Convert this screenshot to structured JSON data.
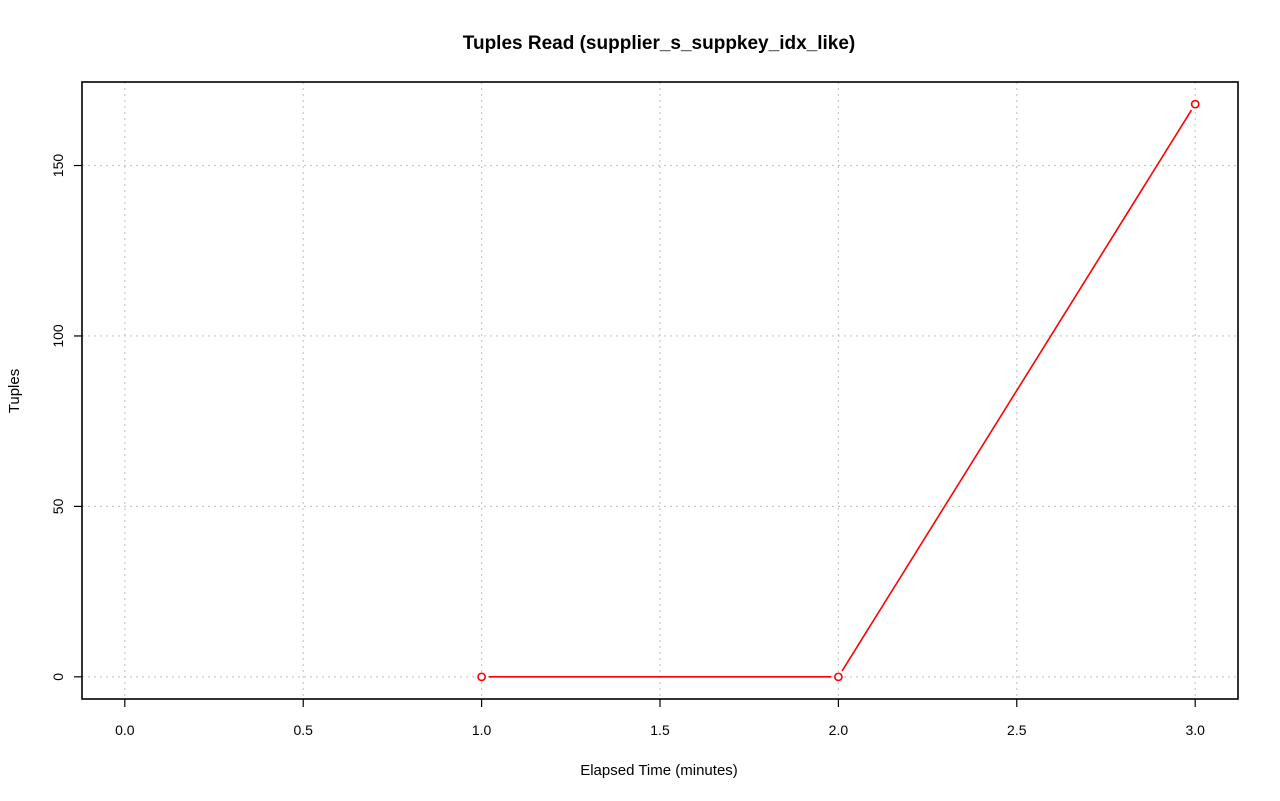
{
  "chart_data": {
    "type": "line",
    "title": "Tuples Read (supplier_s_suppkey_idx_like)",
    "xlabel": "Elapsed Time (minutes)",
    "ylabel": "Tuples",
    "xlim": [
      -0.12,
      3.12
    ],
    "ylim": [
      -6.5,
      174.5
    ],
    "xticks": [
      0.0,
      0.5,
      1.0,
      1.5,
      2.0,
      2.5,
      3.0
    ],
    "xtick_labels": [
      "0.0",
      "0.5",
      "1.0",
      "1.5",
      "2.0",
      "2.5",
      "3.0"
    ],
    "yticks": [
      0,
      50,
      100,
      150
    ],
    "ytick_labels": [
      "0",
      "50",
      "100",
      "150"
    ],
    "grid": true,
    "series": [
      {
        "color": "#ff0000",
        "x": [
          1.0,
          2.0,
          3.0
        ],
        "y": [
          0,
          0,
          168
        ]
      }
    ]
  }
}
